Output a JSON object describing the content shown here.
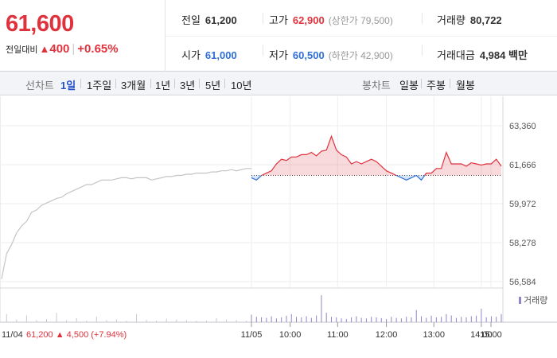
{
  "header": {
    "current_price": "61,600",
    "change_label": "전일대비",
    "change_arrow": "▲",
    "change_value": "400",
    "change_percent": "+0.65%",
    "stats": {
      "prev_close": {
        "label": "전일",
        "value": "61,200"
      },
      "high": {
        "label": "고가",
        "value": "62,900",
        "limit": "(상한가 79,500)"
      },
      "volume": {
        "label": "거래량",
        "value": "80,722"
      },
      "open": {
        "label": "시가",
        "value": "61,000"
      },
      "low": {
        "label": "저가",
        "value": "60,500",
        "limit": "(하한가 42,900)"
      },
      "trade_value": {
        "label": "거래대금",
        "value": "4,984 백만"
      }
    }
  },
  "period_bar": {
    "line_label": "선차트",
    "line_periods": [
      "1일",
      "1주일",
      "3개월",
      "1년",
      "3년",
      "5년",
      "10년"
    ],
    "active_period": "1일",
    "candle_label": "봉차트",
    "candle_periods": [
      "일봉",
      "주봉",
      "월봉"
    ]
  },
  "colors": {
    "up": "#e0323c",
    "down": "#2f6fd6",
    "history_line": "#c4c4c4",
    "volume_bar": "#8f86c9",
    "accent": "#2550c8"
  },
  "chart_data": [
    {
      "type": "line",
      "ylim": [
        56584,
        63360
      ],
      "yticks": [
        "63,360",
        "61,666",
        "59,972",
        "58,278",
        "56,584"
      ],
      "xticks": [
        "11/05",
        "10:00",
        "11:00",
        "12:00",
        "13:00",
        "14:00",
        "15:00"
      ],
      "x_start_label": "11/04",
      "baseline": 61200,
      "grid": true,
      "series": [
        {
          "segment": "previous-day",
          "x": [
            0,
            2,
            4,
            6,
            8,
            10,
            12,
            14,
            16,
            18,
            20,
            22,
            24,
            26,
            28,
            30,
            32,
            34,
            36,
            38,
            40,
            42,
            44,
            46,
            48,
            50,
            52,
            54,
            56,
            58,
            60,
            62,
            64,
            66,
            68,
            70,
            72,
            74,
            76,
            78,
            80,
            82,
            84,
            86,
            88,
            90,
            92,
            94,
            96,
            98,
            100
          ],
          "values": [
            56700,
            57800,
            58200,
            58700,
            59000,
            59200,
            59600,
            59700,
            59900,
            60000,
            60100,
            60200,
            60250,
            60400,
            60500,
            60600,
            60700,
            60800,
            60800,
            60900,
            61000,
            61000,
            61000,
            61050,
            61100,
            61100,
            61050,
            61100,
            61100,
            61100,
            61000,
            61050,
            61100,
            61150,
            61150,
            61200,
            61200,
            61250,
            61250,
            61300,
            61300,
            61300,
            61350,
            61350,
            61400,
            61400,
            61450,
            61400,
            61450,
            61500,
            61500
          ]
        },
        {
          "segment": "today",
          "x": [
            100,
            102,
            104,
            106,
            108,
            110,
            112,
            114,
            116,
            118,
            120,
            122,
            124,
            126,
            128,
            130,
            132,
            134,
            136,
            138,
            140,
            142,
            144,
            146,
            148,
            150,
            152,
            154,
            156,
            158,
            160,
            162,
            164,
            166,
            168,
            170,
            172,
            174,
            176,
            178,
            180,
            182,
            184,
            186,
            188,
            190,
            192,
            194,
            196,
            198,
            200
          ],
          "values": [
            61100,
            61000,
            61200,
            61300,
            61400,
            61700,
            61900,
            61850,
            62000,
            62000,
            62100,
            62100,
            62200,
            62050,
            62250,
            62300,
            62900,
            62300,
            62100,
            62000,
            61700,
            61800,
            61700,
            61800,
            61900,
            61800,
            61600,
            61400,
            61300,
            61200,
            61100,
            61000,
            61100,
            61200,
            61000,
            61300,
            61300,
            61500,
            61500,
            62200,
            61700,
            61700,
            61700,
            61600,
            61750,
            61700,
            61650,
            61700,
            61700,
            61900,
            61600
          ]
        }
      ]
    },
    {
      "type": "bar",
      "legend": "거래량",
      "x": [
        2,
        6,
        10,
        14,
        18,
        22,
        26,
        30,
        34,
        38,
        42,
        46,
        50,
        54,
        58,
        62,
        66,
        70,
        74,
        78,
        82,
        86,
        90,
        94,
        98,
        100,
        102,
        104,
        106,
        108,
        110,
        112,
        114,
        116,
        118,
        120,
        122,
        124,
        126,
        128,
        130,
        132,
        134,
        136,
        138,
        140,
        142,
        144,
        146,
        148,
        150,
        152,
        154,
        156,
        158,
        160,
        162,
        164,
        166,
        168,
        170,
        172,
        174,
        176,
        178,
        180,
        182,
        184,
        186,
        188,
        190,
        192,
        194,
        196,
        198,
        200
      ],
      "values": [
        30,
        10,
        25,
        8,
        12,
        35,
        8,
        15,
        6,
        20,
        8,
        10,
        5,
        30,
        8,
        6,
        12,
        10,
        8,
        5,
        6,
        15,
        10,
        8,
        6,
        28,
        20,
        18,
        16,
        22,
        14,
        18,
        24,
        30,
        20,
        18,
        22,
        16,
        25,
        100,
        35,
        20,
        18,
        14,
        12,
        18,
        22,
        16,
        14,
        20,
        18,
        15,
        12,
        20,
        16,
        14,
        20,
        18,
        45,
        22,
        16,
        24,
        18,
        20,
        30,
        25,
        16,
        20,
        18,
        22,
        24,
        50,
        18,
        22,
        20,
        30
      ]
    }
  ]
}
